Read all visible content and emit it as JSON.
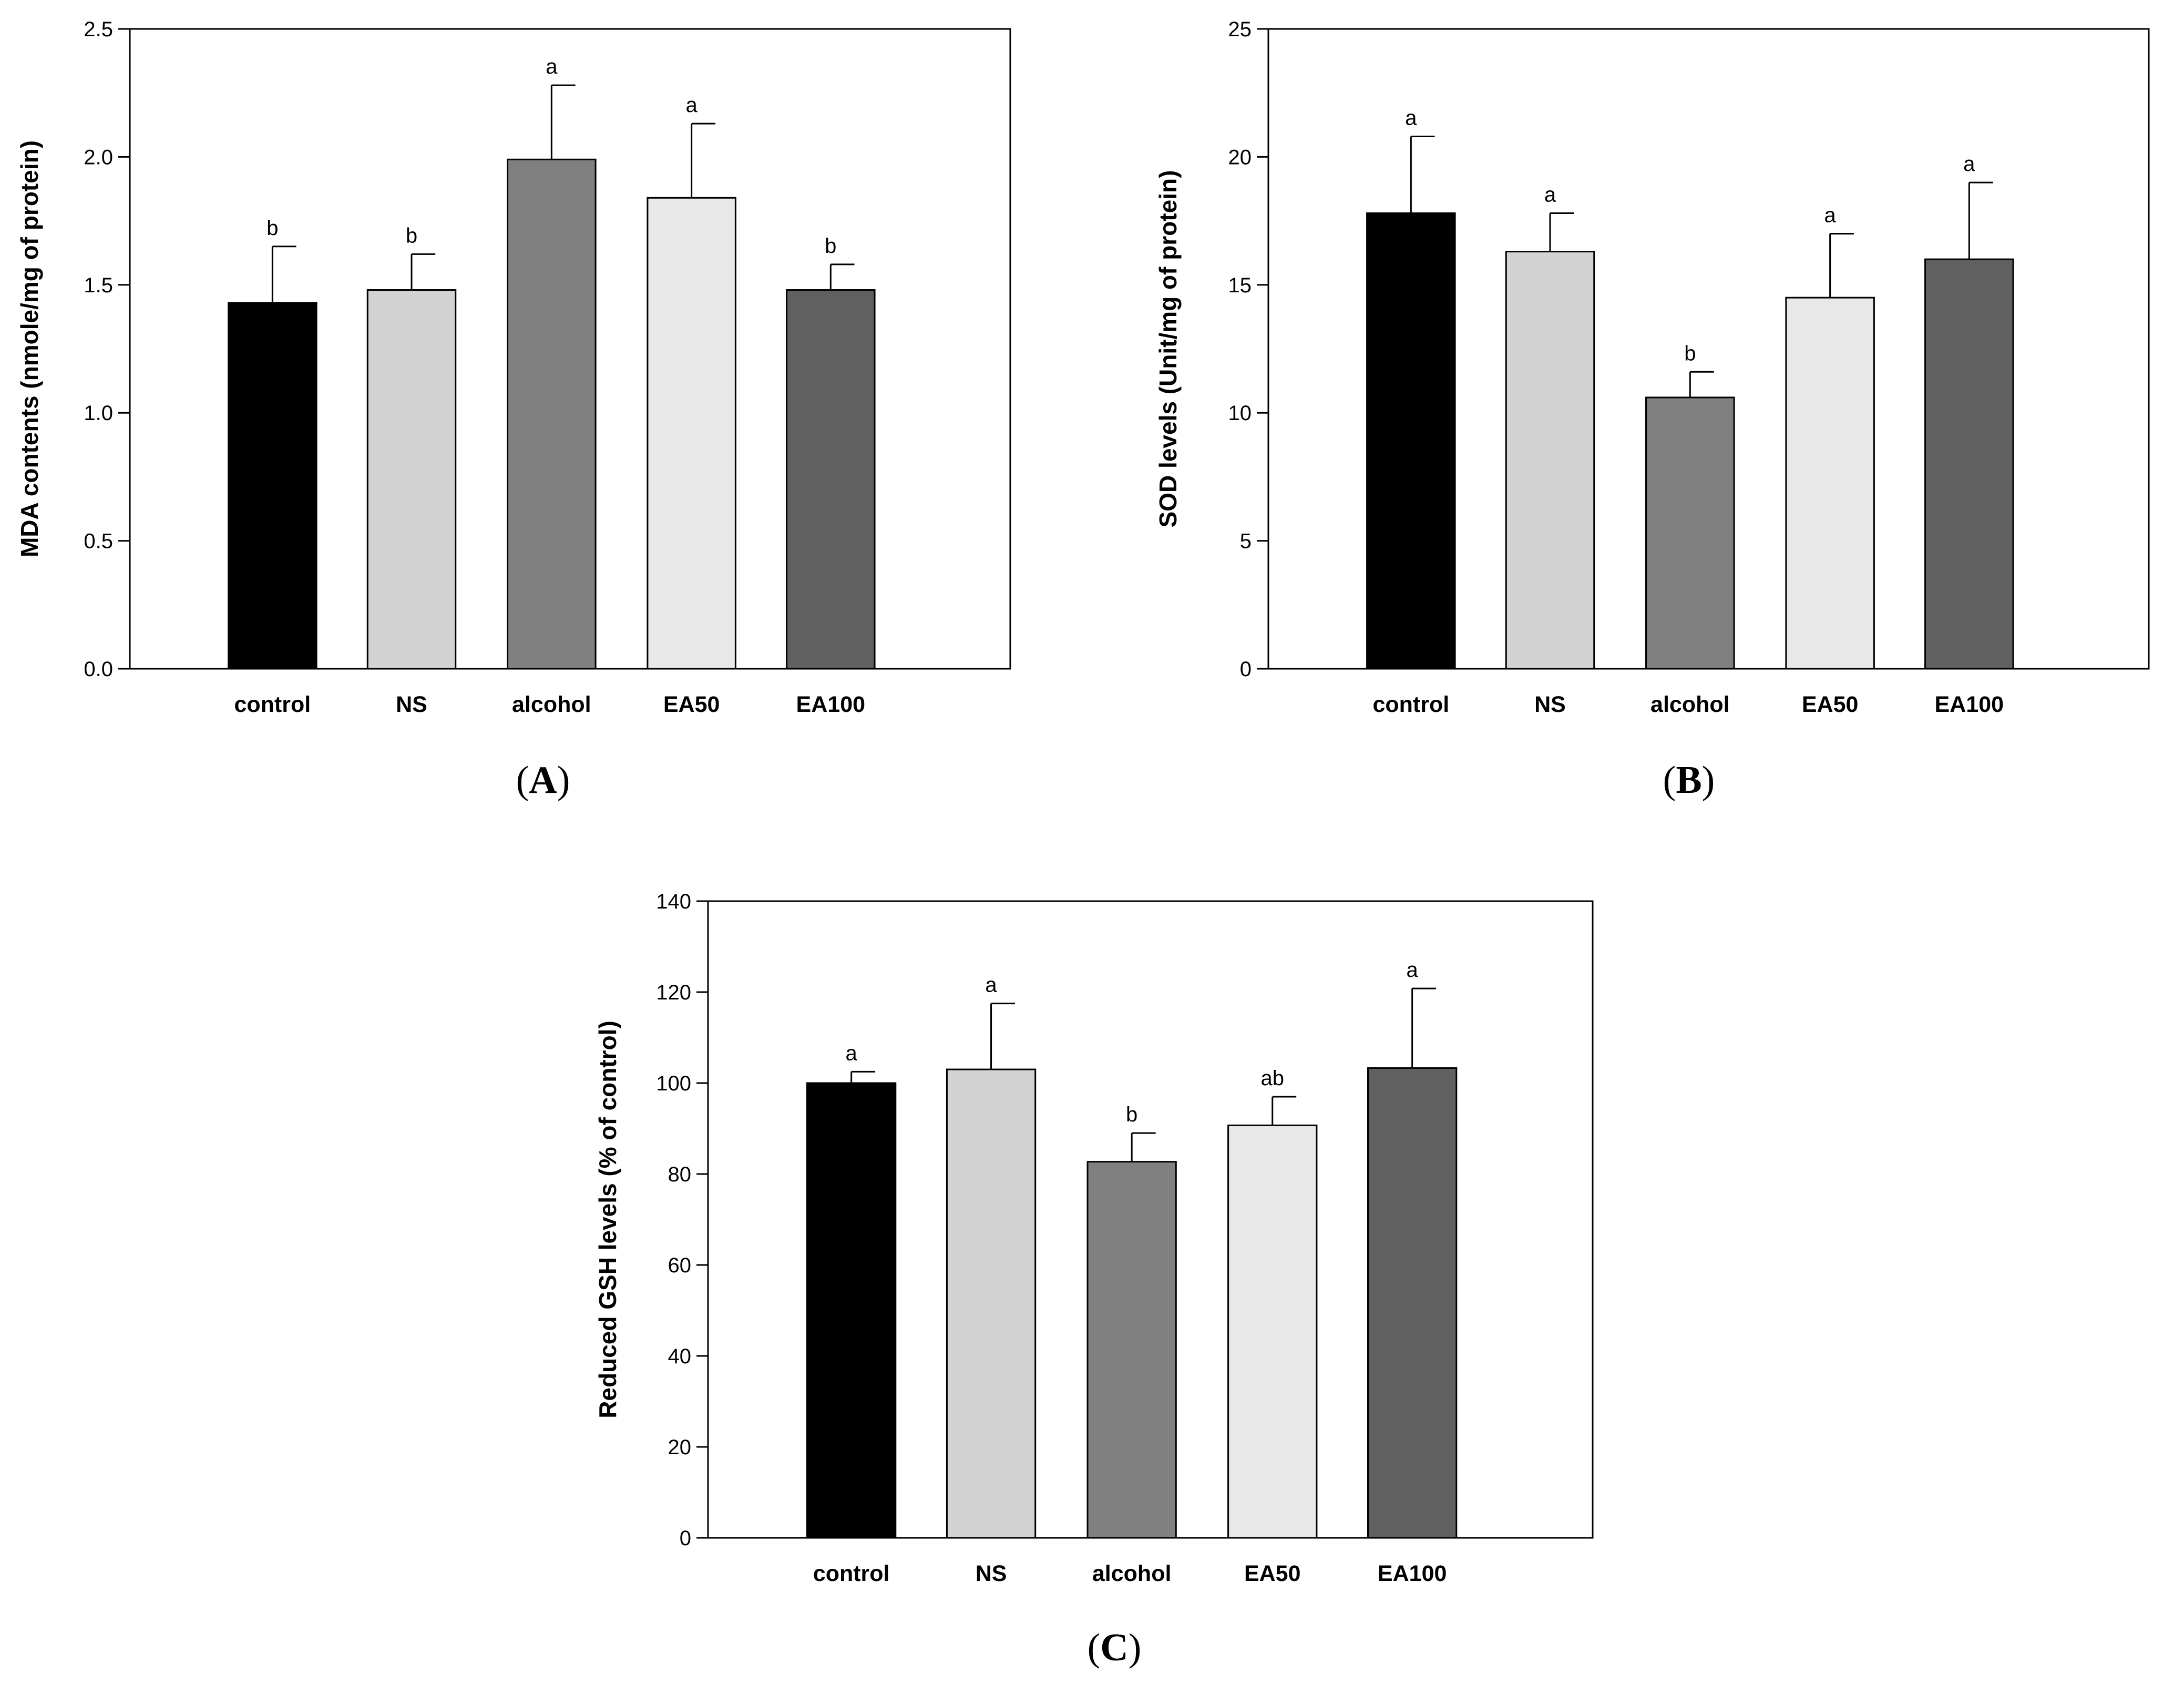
{
  "chart_data": [
    {
      "type": "bar",
      "panel": "A",
      "categories": [
        "control",
        "NS",
        "alcohol",
        "EA50",
        "EA100"
      ],
      "values": [
        1.43,
        1.48,
        1.99,
        1.84,
        1.48
      ],
      "errors": [
        0.22,
        0.14,
        0.29,
        0.29,
        0.1
      ],
      "significance": [
        "b",
        "b",
        "a",
        "a",
        "b"
      ],
      "colors": [
        "#000000",
        "#d3d3d3",
        "#808080",
        "#e8e8e8",
        "#606060"
      ],
      "xlabel": "",
      "ylabel": "MDA contents (nmole/mg of protein)",
      "ylim": [
        0,
        2.5
      ],
      "yticks": [
        0,
        0.5,
        1.0,
        1.5,
        2.0,
        2.5
      ],
      "ytick_labels": [
        "0.0",
        "0.5",
        "1.0",
        "1.5",
        "2.0",
        "2.5"
      ],
      "grid": false,
      "panel_label": {
        "open": "(",
        "letter": "A",
        "close": ")"
      }
    },
    {
      "type": "bar",
      "panel": "B",
      "categories": [
        "control",
        "NS",
        "alcohol",
        "EA50",
        "EA100"
      ],
      "values": [
        17.8,
        16.3,
        10.6,
        14.5,
        16.0
      ],
      "errors": [
        3.0,
        1.5,
        1.0,
        2.5,
        3.0
      ],
      "significance": [
        "a",
        "a",
        "b",
        "a",
        "a"
      ],
      "colors": [
        "#000000",
        "#d3d3d3",
        "#808080",
        "#e8e8e8",
        "#606060"
      ],
      "xlabel": "",
      "ylabel": "SOD levels (Unit/mg of protein)",
      "ylim": [
        0,
        25
      ],
      "yticks": [
        0,
        5,
        10,
        15,
        20,
        25
      ],
      "ytick_labels": [
        "0",
        "5",
        "10",
        "15",
        "20",
        "25"
      ],
      "grid": false,
      "panel_label": {
        "open": "(",
        "letter": "B",
        "close": ")"
      }
    },
    {
      "type": "bar",
      "panel": "C",
      "categories": [
        "control",
        "NS",
        "alcohol",
        "EA50",
        "EA100"
      ],
      "values": [
        100,
        103,
        82.7,
        90.7,
        103.3
      ],
      "errors": [
        2.5,
        14.5,
        6.3,
        6.3,
        17.5
      ],
      "significance": [
        "a",
        "a",
        "b",
        "ab",
        "a"
      ],
      "colors": [
        "#000000",
        "#d3d3d3",
        "#808080",
        "#e8e8e8",
        "#606060"
      ],
      "xlabel": "",
      "ylabel": "Reduced GSH levels (% of control)",
      "ylim": [
        0,
        140
      ],
      "yticks": [
        0,
        20,
        40,
        60,
        80,
        100,
        120,
        140
      ],
      "ytick_labels": [
        "0",
        "20",
        "40",
        "60",
        "80",
        "100",
        "120",
        "140"
      ],
      "grid": false,
      "panel_label": {
        "open": "(",
        "letter": "C",
        "close": ")"
      }
    }
  ]
}
